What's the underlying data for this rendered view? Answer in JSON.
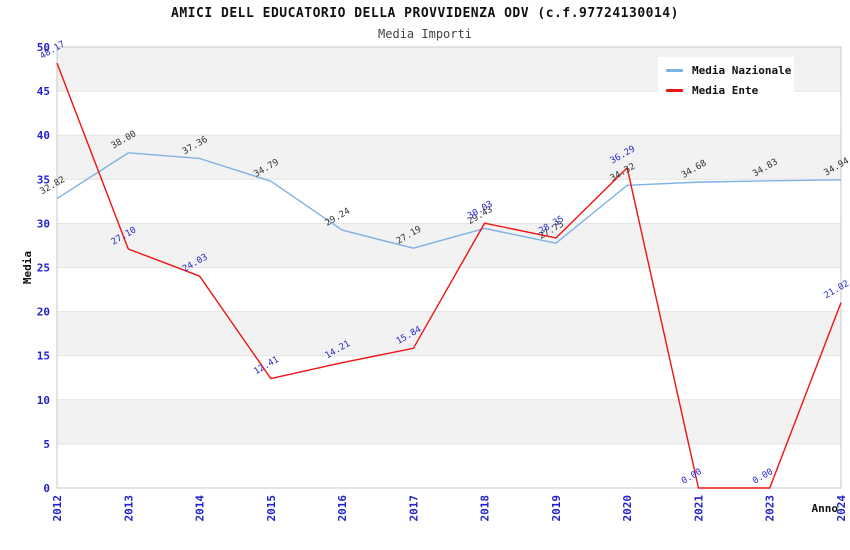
{
  "chart_data": {
    "type": "line",
    "title": "AMICI DELL EDUCATORIO DELLA PROVVIDENZA ODV (c.f.97724130014)",
    "subtitle": "Media Importi",
    "xlabel": "Anno",
    "ylabel": "Media",
    "ylim": [
      0,
      50
    ],
    "ytick_step": 5,
    "yticks": [
      0,
      5,
      10,
      15,
      20,
      25,
      30,
      35,
      40,
      45,
      50
    ],
    "grid": "horizontal-alternating-bands",
    "legend_position": "top-right",
    "categories": [
      "2012",
      "2013",
      "2014",
      "2015",
      "2016",
      "2017",
      "2018",
      "2019",
      "2020",
      "2021",
      "2023",
      "2024"
    ],
    "series": [
      {
        "name": "Media Nazionale",
        "color": "#7EB2E4",
        "label_color": "#333333",
        "values": [
          32.82,
          38.0,
          37.36,
          34.79,
          29.24,
          27.19,
          29.43,
          27.75,
          34.32,
          34.68,
          34.83,
          34.94
        ]
      },
      {
        "name": "Media Ente",
        "color": "#EE1414",
        "label_color": "#2A2AC8",
        "values": [
          48.17,
          27.1,
          24.03,
          12.41,
          14.21,
          15.84,
          30.03,
          28.35,
          36.29,
          0.0,
          0.0,
          21.02
        ]
      }
    ],
    "colors": {
      "tick_label": "#2222CC",
      "band_fill": "#F2F2F2",
      "grid_line": "#E3E3E3",
      "plot_border": "#C8C8C8"
    }
  }
}
